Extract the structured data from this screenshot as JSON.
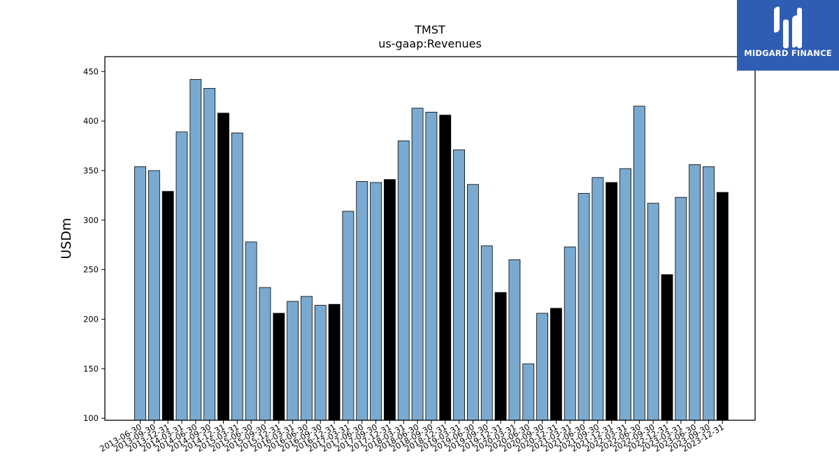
{
  "logo": {
    "text": "MIDGARD FINANCE",
    "background": "#2f5db3"
  },
  "chart_data": {
    "type": "bar",
    "title": "TMST",
    "subtitle": "us-gaap:Revenues",
    "xlabel": "",
    "ylabel": "USDm",
    "ylim": [
      98,
      465
    ],
    "yticks": [
      100,
      150,
      200,
      250,
      300,
      350,
      400,
      450
    ],
    "grid": false,
    "colors": {
      "quarter": "#7aaad0",
      "year_end": "#000000",
      "edge": "#000000"
    },
    "categories": [
      "2013-06-30",
      "2013-09-30",
      "2013-12-31",
      "2014-03-31",
      "2014-06-30",
      "2014-09-30",
      "2014-12-31",
      "2015-03-31",
      "2015-06-30",
      "2015-09-30",
      "2015-12-31",
      "2016-03-31",
      "2016-06-30",
      "2016-09-30",
      "2016-12-31",
      "2017-03-31",
      "2017-06-30",
      "2017-09-30",
      "2017-12-31",
      "2018-03-31",
      "2018-06-30",
      "2018-09-30",
      "2018-12-31",
      "2019-03-31",
      "2019-06-30",
      "2019-09-30",
      "2019-12-31",
      "2020-03-31",
      "2020-06-30",
      "2020-09-30",
      "2020-12-31",
      "2021-03-31",
      "2021-06-30",
      "2021-09-30",
      "2021-12-31",
      "2022-03-31",
      "2022-06-30",
      "2022-09-30",
      "2022-12-31",
      "2023-03-31",
      "2023-06-30",
      "2023-09-30",
      "2023-12-31"
    ],
    "values": [
      354,
      350,
      329,
      389,
      442,
      433,
      408,
      388,
      278,
      232,
      206,
      218,
      223,
      214,
      215,
      309,
      339,
      338,
      341,
      380,
      413,
      409,
      406,
      371,
      336,
      274,
      227,
      260,
      155,
      206,
      211,
      273,
      327,
      343,
      338,
      352,
      415,
      317,
      245,
      323,
      356,
      354,
      328
    ]
  }
}
